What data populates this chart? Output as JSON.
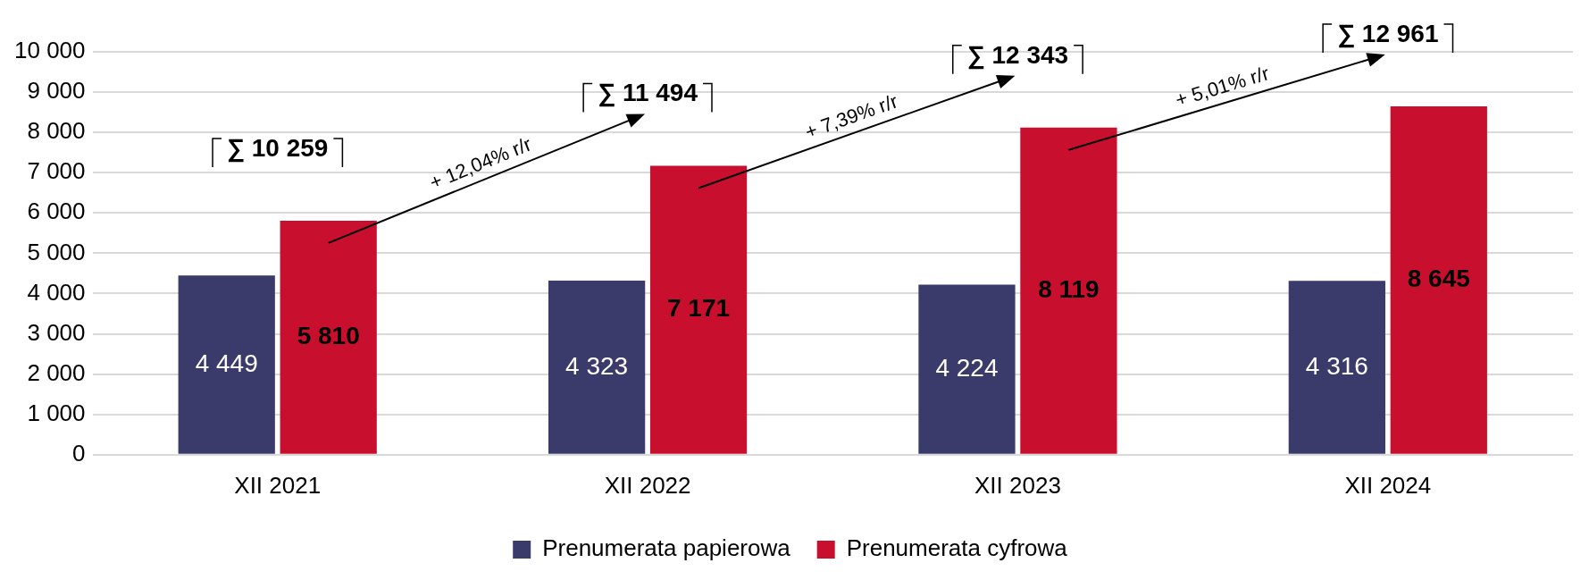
{
  "chart_data": {
    "type": "bar",
    "categories": [
      "XII 2021",
      "XII 2022",
      "XII 2023",
      "XII 2024"
    ],
    "series": [
      {
        "name": "Prenumerata papierowa",
        "color": "#3a3a6b",
        "values": [
          4449,
          4323,
          4224,
          4316
        ],
        "value_labels": [
          "4 449",
          "4 323",
          "4 224",
          "4 316"
        ]
      },
      {
        "name": "Prenumerata cyfrowa",
        "color": "#c8102e",
        "values": [
          5810,
          7171,
          8119,
          8645
        ],
        "value_labels": [
          "5 810",
          "7 171",
          "8 119",
          "8 645"
        ]
      }
    ],
    "totals": [
      "∑ 10 259",
      "∑ 11 494",
      "∑ 12 343",
      "∑ 12 961"
    ],
    "annotations": [
      "+ 12,04% r/r",
      "+ 7,39% r/r",
      "+ 5,01% r/r"
    ],
    "ylim": [
      0,
      10000
    ],
    "yticks": [
      0,
      {
        "value": 1000,
        "label": "1 000"
      },
      {
        "value": 2000,
        "label": "2 000"
      },
      {
        "value": 3000,
        "label": "3 000"
      },
      {
        "value": 4000,
        "label": "4 000"
      },
      {
        "value": 5000,
        "label": "5 000"
      },
      {
        "value": 6000,
        "label": "6 000"
      },
      {
        "value": 7000,
        "label": "7 000"
      },
      {
        "value": 8000,
        "label": "8 000"
      },
      {
        "value": 9000,
        "label": "9 000"
      },
      {
        "value": 10000,
        "label": "10 000"
      }
    ],
    "grid": "y",
    "legend": "bottom"
  }
}
